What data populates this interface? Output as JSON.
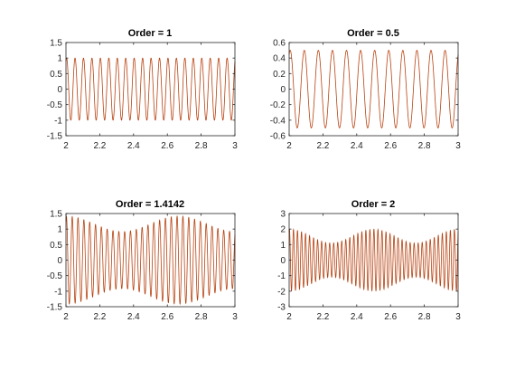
{
  "chart_data": [
    {
      "type": "line",
      "title": "Order = 1",
      "xlabel": "",
      "ylabel": "",
      "xlim": [
        2,
        3
      ],
      "ylim": [
        -1.5,
        1.5
      ],
      "x_ticks": [
        "2",
        "2.2",
        "2.4",
        "2.6",
        "2.8",
        "3"
      ],
      "y_ticks": [
        "1.5",
        "1",
        "0.5",
        "0",
        "-0.5",
        "-1",
        "-1.5"
      ],
      "grid": false,
      "line_color": "#d95319",
      "signal": {
        "amplitude": 1.0,
        "cycles_in_range": 20,
        "beat_cycles": 0,
        "beat_depth": 0
      }
    },
    {
      "type": "line",
      "title": "Order = 0.5",
      "xlabel": "",
      "ylabel": "",
      "xlim": [
        2,
        3
      ],
      "ylim": [
        -0.6,
        0.6
      ],
      "x_ticks": [
        "2",
        "2.2",
        "2.4",
        "2.6",
        "2.8",
        "3"
      ],
      "y_ticks": [
        "0.6",
        "0.4",
        "0.2",
        "0",
        "-0.2",
        "-0.4",
        "-0.6"
      ],
      "grid": false,
      "line_color": "#d95319",
      "signal": {
        "amplitude": 0.5,
        "cycles_in_range": 12,
        "beat_cycles": 0,
        "beat_depth": 0
      }
    },
    {
      "type": "line",
      "title": "Order = 1.4142",
      "xlabel": "",
      "ylabel": "",
      "xlim": [
        2,
        3
      ],
      "ylim": [
        -1.5,
        1.5
      ],
      "x_ticks": [
        "2",
        "2.2",
        "2.4",
        "2.6",
        "2.8",
        "3"
      ],
      "y_ticks": [
        "1.5",
        "1",
        "0.5",
        "0",
        "-0.5",
        "-1",
        "-1.5"
      ],
      "grid": false,
      "line_color": "#d95319",
      "signal": {
        "amplitude": 1.414,
        "cycles_in_range": 29,
        "beat_cycles": 1.5,
        "beat_depth": 0.35
      }
    },
    {
      "type": "line",
      "title": "Order = 2",
      "xlabel": "",
      "ylabel": "",
      "xlim": [
        2,
        3
      ],
      "ylim": [
        -3,
        3
      ],
      "x_ticks": [
        "2",
        "2.2",
        "2.4",
        "2.6",
        "2.8",
        "3"
      ],
      "y_ticks": [
        "3",
        "2",
        "1",
        "0",
        "-1",
        "-2",
        "-3"
      ],
      "grid": false,
      "line_color": "#d95319",
      "signal": {
        "amplitude": 2.0,
        "cycles_in_range": 42,
        "beat_cycles": 2,
        "beat_depth": 0.45
      }
    }
  ]
}
